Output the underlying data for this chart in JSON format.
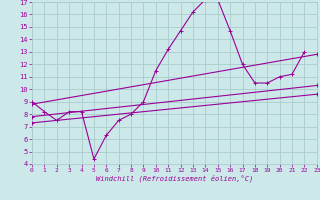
{
  "xlabel": "Windchill (Refroidissement éolien,°C)",
  "bg_color": "#cce8e8",
  "grid_color": "#aacccc",
  "line_color": "#990099",
  "xmin": 0,
  "xmax": 23,
  "ymin": 4,
  "ymax": 17,
  "series1_y": [
    9.0,
    8.2,
    7.5,
    8.2,
    8.2,
    4.4,
    6.3,
    7.5,
    8.0,
    9.0,
    11.5,
    13.2,
    14.7,
    16.2,
    17.2,
    17.2,
    14.7,
    12.0,
    10.5,
    10.5,
    11.0,
    11.2,
    13.0
  ],
  "series2_y": [
    8.8,
    12.8
  ],
  "series3_y": [
    7.8,
    10.3
  ],
  "series4_y": [
    7.3,
    9.6
  ],
  "xticks": [
    0,
    1,
    2,
    3,
    4,
    5,
    6,
    7,
    8,
    9,
    10,
    11,
    12,
    13,
    14,
    15,
    16,
    17,
    18,
    19,
    20,
    21,
    22,
    23
  ],
  "yticks": [
    4,
    5,
    6,
    7,
    8,
    9,
    10,
    11,
    12,
    13,
    14,
    15,
    16,
    17
  ]
}
